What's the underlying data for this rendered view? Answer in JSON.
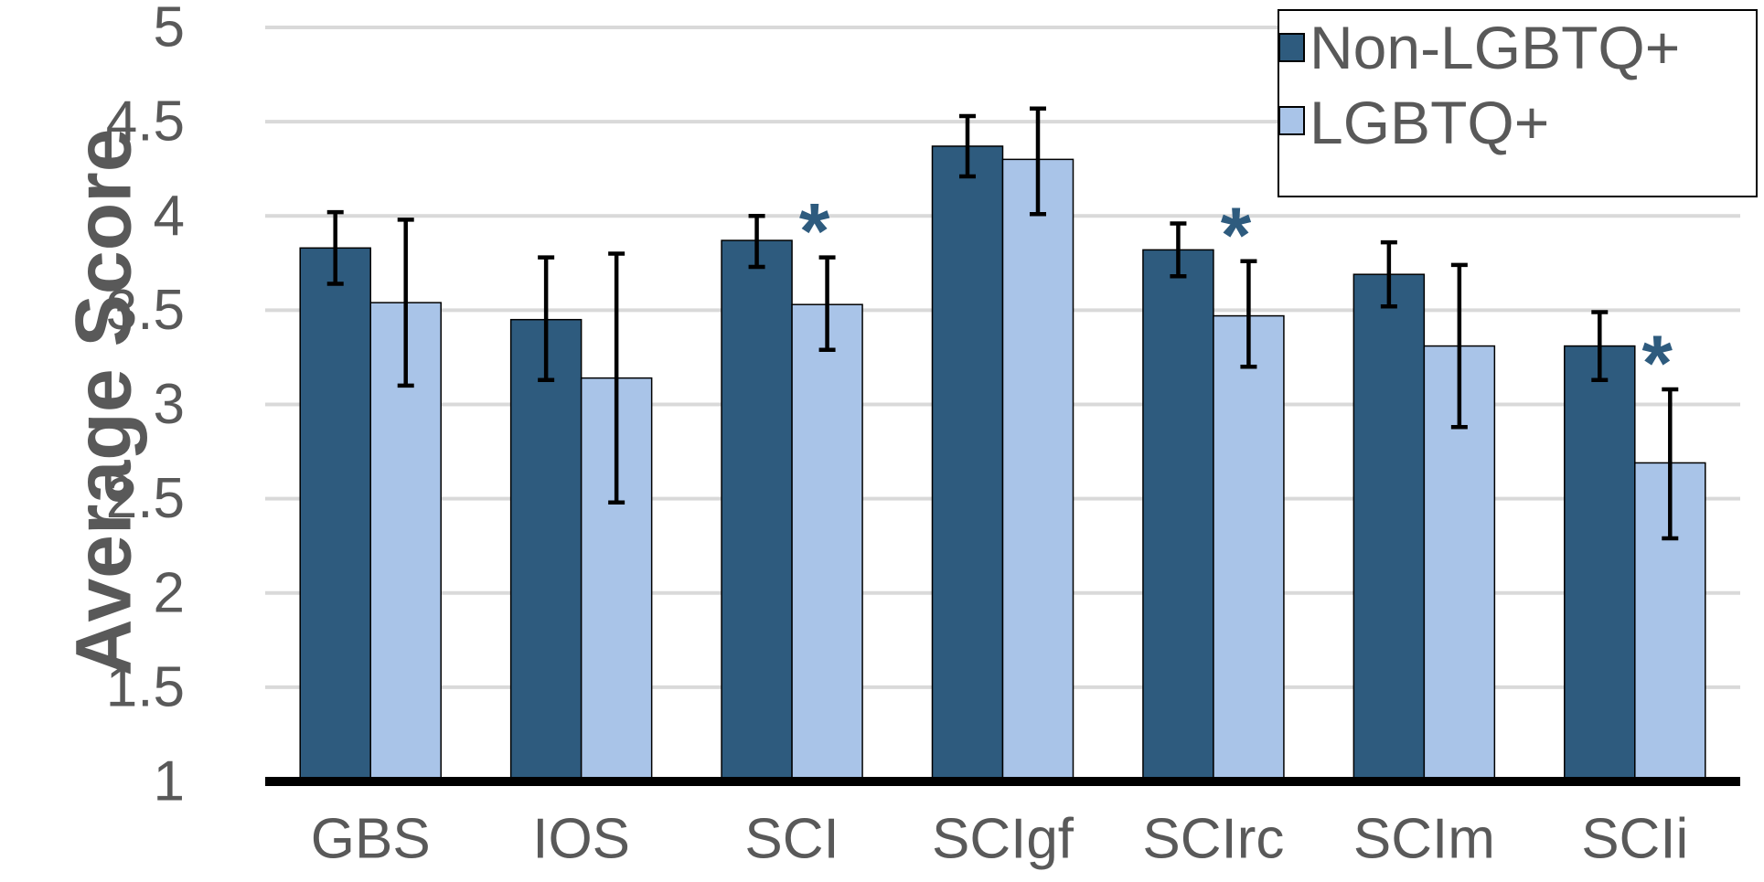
{
  "chart_data": {
    "type": "bar",
    "ylabel": "Average Score",
    "ylim": [
      1,
      5
    ],
    "yticks": [
      "1",
      "1.5",
      "2",
      "2.5",
      "3",
      "3.5",
      "4",
      "4.5",
      "5"
    ],
    "grid": true,
    "legend_position": "top-right",
    "categories": [
      "GBS",
      "IOS",
      "SCI",
      "SCIgf",
      "SCIrc",
      "SCIm",
      "SCIi"
    ],
    "series": [
      {
        "name": "Non-LGBTQ+",
        "color": "#2e5b7e",
        "values": [
          3.83,
          3.45,
          3.87,
          4.37,
          3.82,
          3.69,
          3.31
        ],
        "error_low": [
          3.64,
          3.13,
          3.73,
          4.21,
          3.68,
          3.52,
          3.13
        ],
        "error_high": [
          4.02,
          3.78,
          4.0,
          4.53,
          3.96,
          3.86,
          3.49
        ]
      },
      {
        "name": "LGBTQ+",
        "color": "#a9c4e8",
        "values": [
          3.54,
          3.14,
          3.53,
          4.3,
          3.47,
          3.31,
          2.69
        ],
        "error_low": [
          3.1,
          2.48,
          3.29,
          4.01,
          3.2,
          2.88,
          2.29
        ],
        "error_high": [
          3.98,
          3.8,
          3.78,
          4.57,
          3.76,
          3.74,
          3.08
        ]
      }
    ],
    "annotations": [
      {
        "category": "SCI",
        "text": "*"
      },
      {
        "category": "SCIrc",
        "text": "*"
      },
      {
        "category": "SCIi",
        "text": "*"
      }
    ]
  }
}
